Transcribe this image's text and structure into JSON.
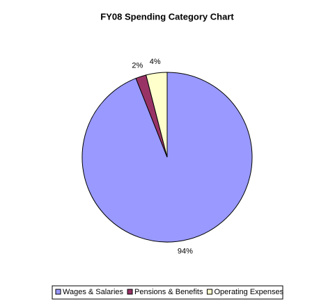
{
  "chart_data": {
    "type": "pie",
    "title": "FY08 Spending Category Chart",
    "categories": [
      "Wages & Salaries",
      "Pensions & Benefits",
      "Operating Expenses"
    ],
    "values": [
      94,
      2,
      4
    ],
    "value_labels": [
      "94%",
      "2%",
      "4%"
    ],
    "colors": [
      "#9999ff",
      "#993366",
      "#ffffcc"
    ],
    "legend": "bottom"
  }
}
